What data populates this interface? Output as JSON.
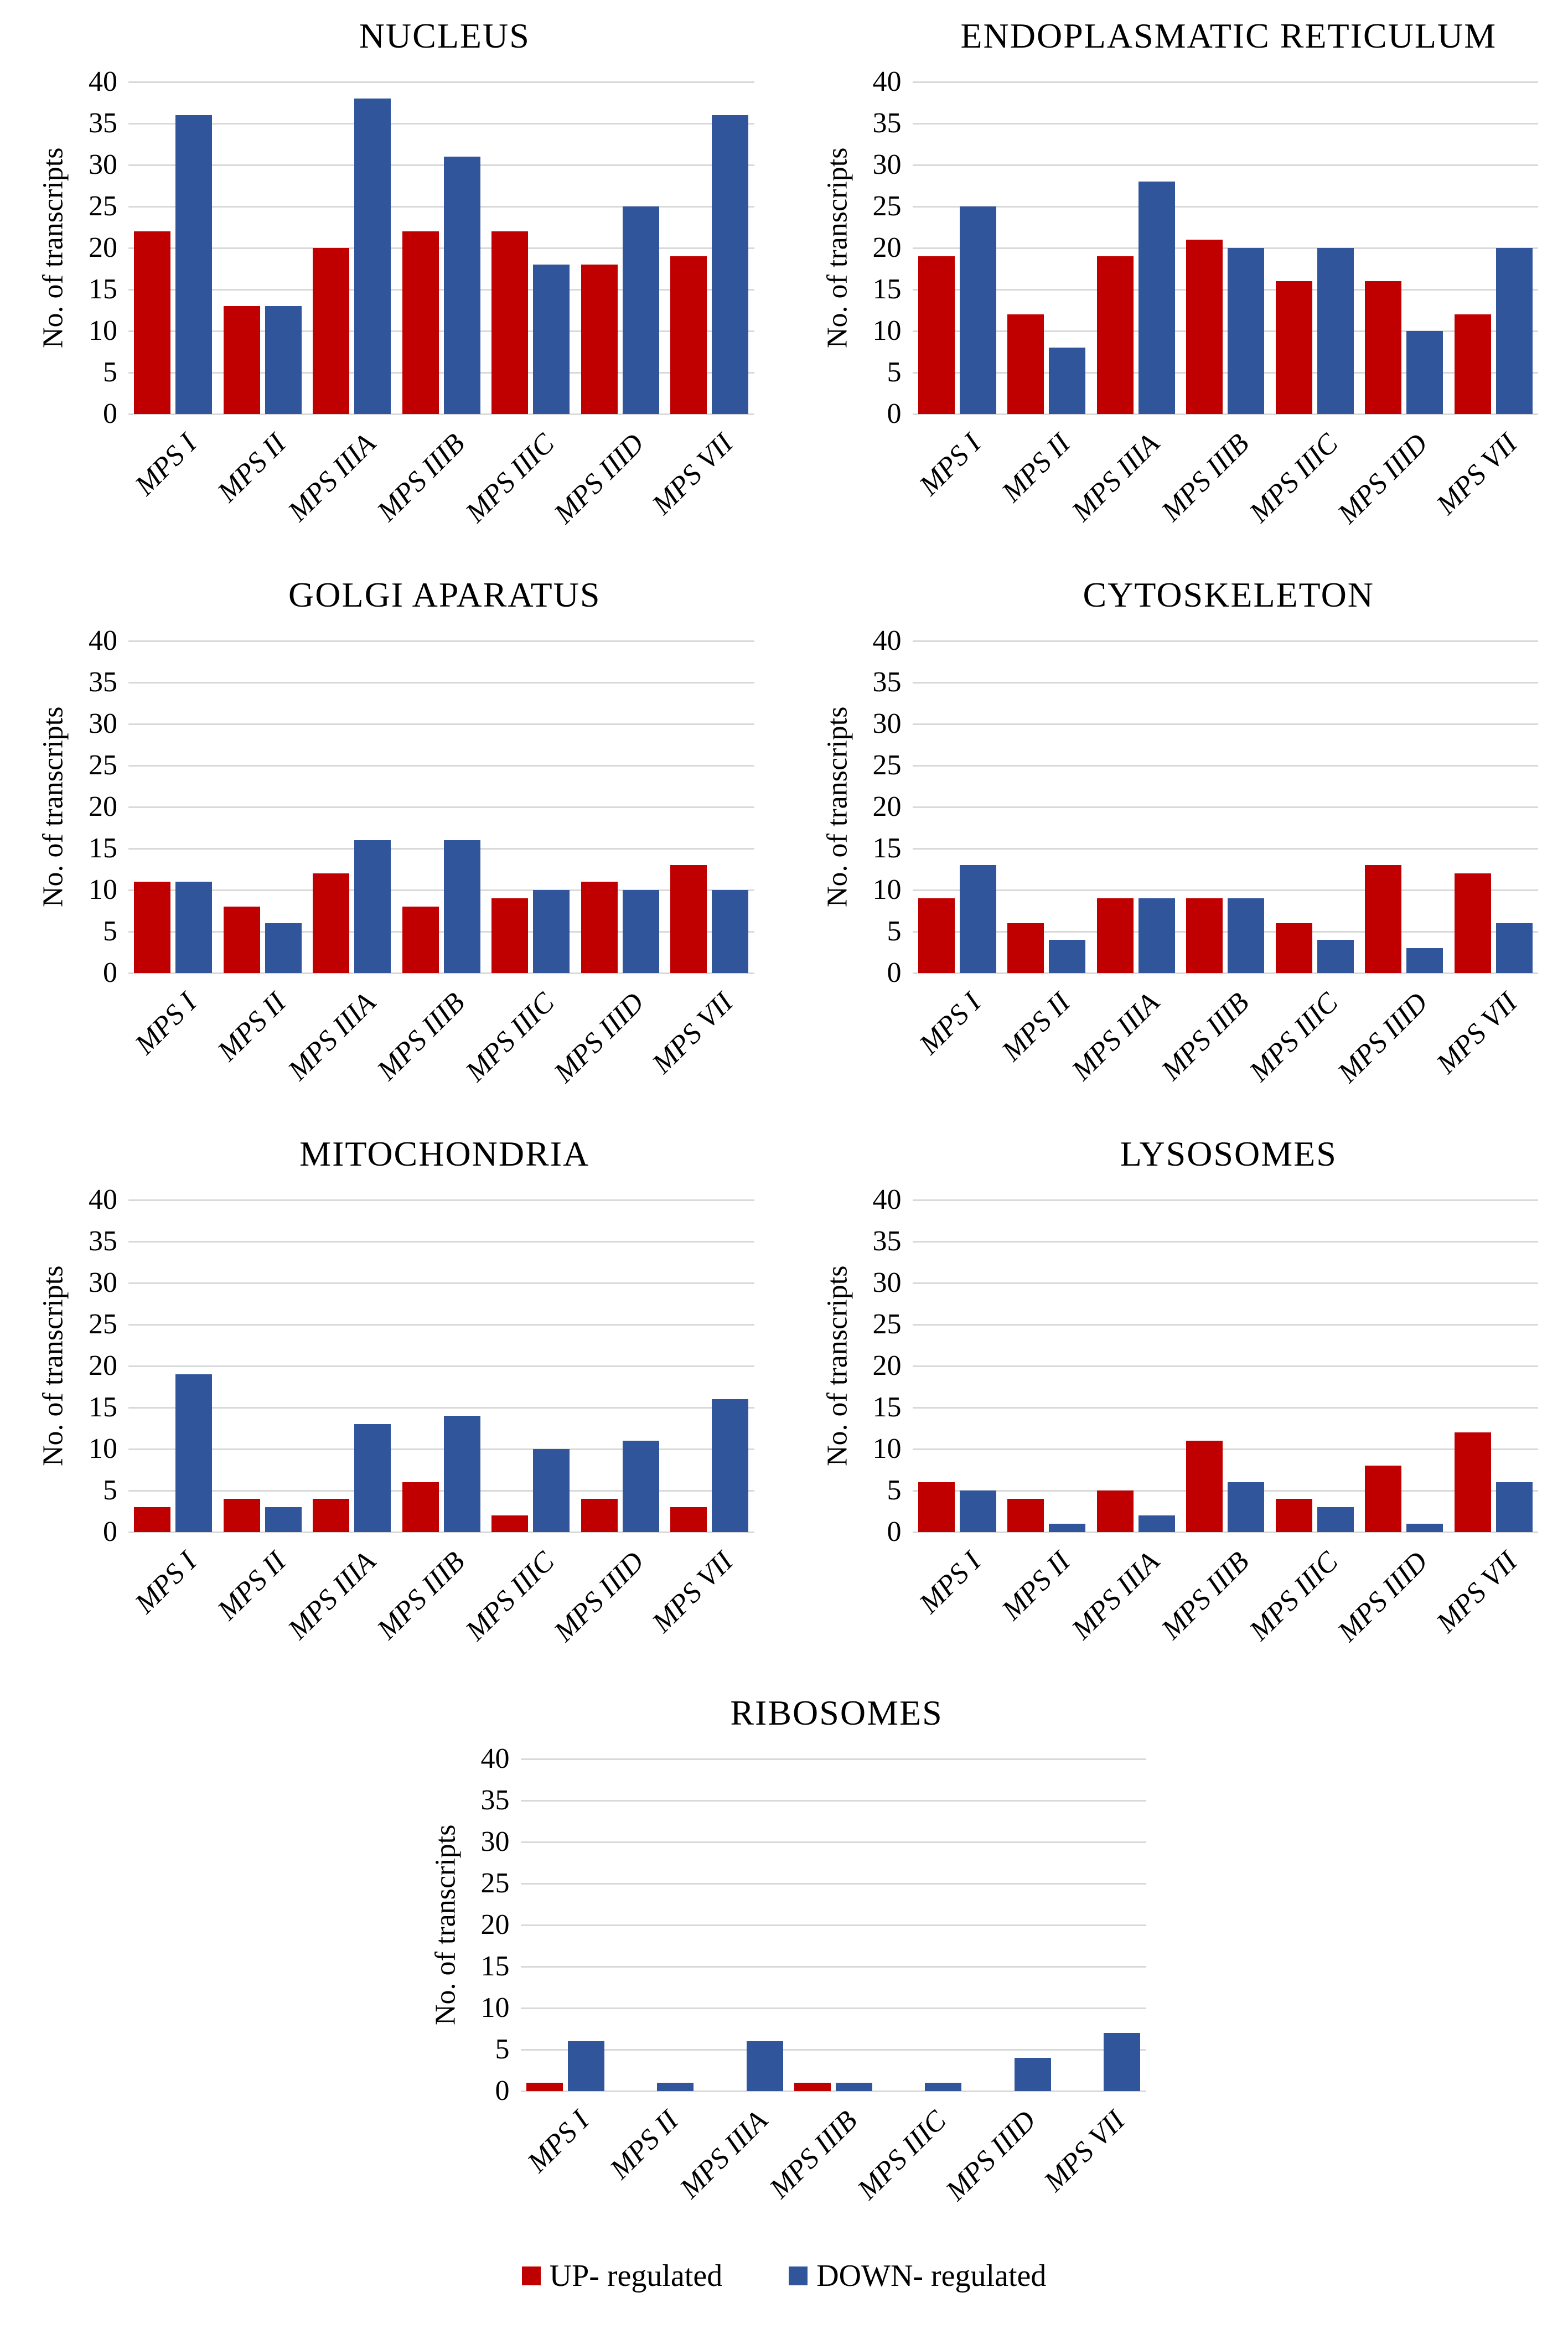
{
  "figure": {
    "background": "#ffffff"
  },
  "axis": {
    "ylabel": "No. of transcripts",
    "ymax": 40,
    "yticks": [
      0,
      5,
      10,
      15,
      20,
      25,
      30,
      35,
      40
    ],
    "grid": "horizontal",
    "gridline_color": "#d9d9d9"
  },
  "categories": [
    "MPS I",
    "MPS II",
    "MPS IIIA",
    "MPS IIIB",
    "MPS IIIC",
    "MPS IIID",
    "MPS VII"
  ],
  "legend": {
    "position": "bottom-center",
    "items": [
      {
        "label": "UP- regulated",
        "color": "#c00000"
      },
      {
        "label": "DOWN- regulated",
        "color": "#31559b"
      }
    ]
  },
  "chart_data": [
    {
      "type": "bar",
      "title": "NUCLEUS",
      "xlabel": "",
      "ylabel": "No. of transcripts",
      "ylim": [
        0,
        40
      ],
      "categories": [
        "MPS I",
        "MPS II",
        "MPS IIIA",
        "MPS IIIB",
        "MPS IIIC",
        "MPS IIID",
        "MPS VII"
      ],
      "series": [
        {
          "name": "UP- regulated",
          "color": "#c00000",
          "values": [
            22,
            13,
            20,
            22,
            22,
            18,
            19
          ]
        },
        {
          "name": "DOWN- regulated",
          "color": "#31559b",
          "values": [
            36,
            13,
            38,
            31,
            18,
            25,
            36
          ]
        }
      ]
    },
    {
      "type": "bar",
      "title": "ENDOPLASMATIC RETICULUM",
      "xlabel": "",
      "ylabel": "No. of transcripts",
      "ylim": [
        0,
        40
      ],
      "categories": [
        "MPS I",
        "MPS II",
        "MPS IIIA",
        "MPS IIIB",
        "MPS IIIC",
        "MPS IIID",
        "MPS VII"
      ],
      "series": [
        {
          "name": "UP- regulated",
          "color": "#c00000",
          "values": [
            19,
            12,
            19,
            21,
            16,
            16,
            12
          ]
        },
        {
          "name": "DOWN- regulated",
          "color": "#31559b",
          "values": [
            25,
            8,
            28,
            20,
            20,
            10,
            20
          ]
        }
      ]
    },
    {
      "type": "bar",
      "title": "GOLGI APARATUS",
      "xlabel": "",
      "ylabel": "No. of transcripts",
      "ylim": [
        0,
        40
      ],
      "categories": [
        "MPS I",
        "MPS II",
        "MPS IIIA",
        "MPS IIIB",
        "MPS IIIC",
        "MPS IIID",
        "MPS VII"
      ],
      "series": [
        {
          "name": "UP- regulated",
          "color": "#c00000",
          "values": [
            11,
            8,
            12,
            8,
            9,
            11,
            13
          ]
        },
        {
          "name": "DOWN- regulated",
          "color": "#31559b",
          "values": [
            11,
            6,
            16,
            16,
            10,
            10,
            10
          ]
        }
      ]
    },
    {
      "type": "bar",
      "title": "CYTOSKELETON",
      "xlabel": "",
      "ylabel": "No. of transcripts",
      "ylim": [
        0,
        40
      ],
      "categories": [
        "MPS I",
        "MPS II",
        "MPS IIIA",
        "MPS IIIB",
        "MPS IIIC",
        "MPS IIID",
        "MPS VII"
      ],
      "series": [
        {
          "name": "UP- regulated",
          "color": "#c00000",
          "values": [
            9,
            6,
            9,
            9,
            6,
            13,
            12
          ]
        },
        {
          "name": "DOWN- regulated",
          "color": "#31559b",
          "values": [
            13,
            4,
            9,
            9,
            4,
            3,
            6
          ]
        }
      ]
    },
    {
      "type": "bar",
      "title": "MITOCHONDRIA",
      "xlabel": "",
      "ylabel": "No. of transcripts",
      "ylim": [
        0,
        40
      ],
      "categories": [
        "MPS I",
        "MPS II",
        "MPS IIIA",
        "MPS IIIB",
        "MPS IIIC",
        "MPS IIID",
        "MPS VII"
      ],
      "series": [
        {
          "name": "UP- regulated",
          "color": "#c00000",
          "values": [
            3,
            4,
            4,
            6,
            2,
            4,
            3
          ]
        },
        {
          "name": "DOWN- regulated",
          "color": "#31559b",
          "values": [
            19,
            3,
            13,
            14,
            10,
            11,
            16
          ]
        }
      ]
    },
    {
      "type": "bar",
      "title": "LYSOSOMES",
      "xlabel": "",
      "ylabel": "No. of transcripts",
      "ylim": [
        0,
        40
      ],
      "categories": [
        "MPS I",
        "MPS II",
        "MPS IIIA",
        "MPS IIIB",
        "MPS IIIC",
        "MPS IIID",
        "MPS VII"
      ],
      "series": [
        {
          "name": "UP- regulated",
          "color": "#c00000",
          "values": [
            6,
            4,
            5,
            11,
            4,
            8,
            12
          ]
        },
        {
          "name": "DOWN- regulated",
          "color": "#31559b",
          "values": [
            5,
            1,
            2,
            6,
            3,
            1,
            6
          ]
        }
      ]
    },
    {
      "type": "bar",
      "title": "RIBOSOMES",
      "xlabel": "",
      "ylabel": "No. of transcripts",
      "ylim": [
        0,
        40
      ],
      "categories": [
        "MPS I",
        "MPS II",
        "MPS IIIA",
        "MPS IIIB",
        "MPS IIIC",
        "MPS IIID",
        "MPS VII"
      ],
      "series": [
        {
          "name": "UP- regulated",
          "color": "#c00000",
          "values": [
            1,
            0,
            0,
            1,
            0,
            0,
            0
          ]
        },
        {
          "name": "DOWN- regulated",
          "color": "#31559b",
          "values": [
            6,
            1,
            6,
            1,
            1,
            4,
            7
          ]
        }
      ]
    }
  ]
}
